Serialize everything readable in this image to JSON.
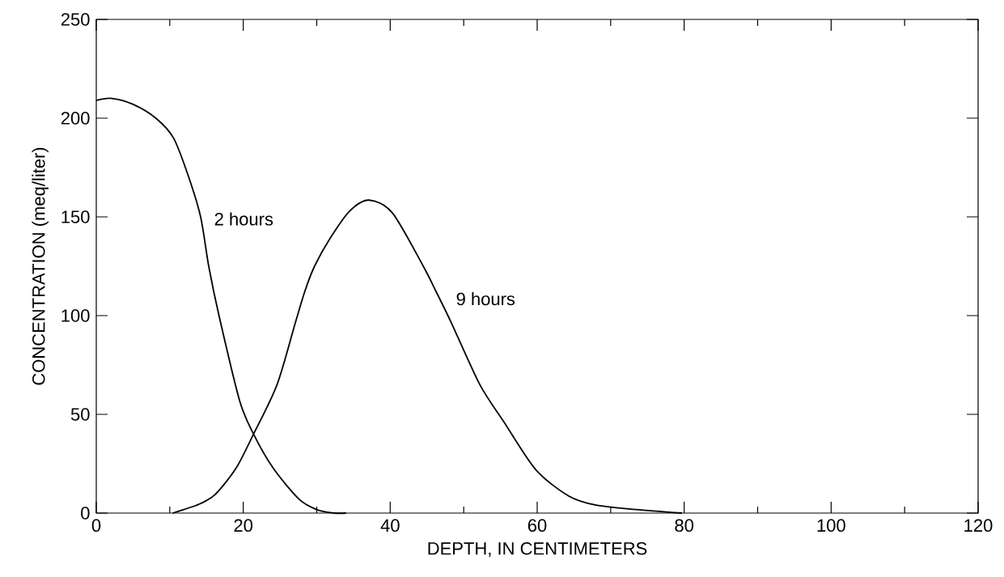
{
  "chart_data": {
    "type": "line",
    "xlabel": "DEPTH, IN CENTIMETERS",
    "ylabel": "CONCENTRATION (meq/liter)",
    "xlim": [
      0,
      120
    ],
    "ylim": [
      0,
      250
    ],
    "xticks": [
      0,
      {
        "value": 10,
        "label": null
      },
      20,
      {
        "value": 30,
        "label": null
      },
      40,
      {
        "value": 50,
        "label": null
      },
      60,
      {
        "value": 70,
        "label": null
      },
      80,
      {
        "value": 90,
        "label": null
      },
      100,
      {
        "value": 110,
        "label": null
      },
      120
    ],
    "yticks": [
      0,
      50,
      100,
      150,
      200,
      250
    ],
    "grid": false,
    "marker": "none",
    "line_style": "solid",
    "series": [
      {
        "name": "2 hours",
        "color": "#000000",
        "x": [
          0,
          2.1,
          5,
          8.1,
          10.5,
          12.5,
          14.2,
          15.3,
          16.7,
          19.5,
          21.4,
          24.1,
          27.6,
          30.1,
          32.4,
          34
        ],
        "values": [
          209,
          210,
          207,
          200,
          190,
          171,
          150,
          125,
          100,
          57,
          40,
          22.6,
          7,
          1.6,
          0,
          0
        ]
      },
      {
        "name": "9 hours",
        "color": "#000000",
        "x": [
          10.4,
          14,
          16.2,
          19,
          21.4,
          24.6,
          27.1,
          28.4,
          29.7,
          31.8,
          34.5,
          37.1,
          40.3,
          44.5,
          46.2,
          48.3,
          52.2,
          55.5,
          59.8,
          64.3,
          68,
          73.4,
          79.7
        ],
        "values": [
          0,
          4.5,
          9.5,
          22.6,
          40,
          65,
          96.5,
          112.5,
          125,
          139,
          153,
          158.5,
          152,
          125,
          112.5,
          96.5,
          65,
          46,
          22,
          8.6,
          4,
          1.8,
          0
        ]
      }
    ]
  }
}
